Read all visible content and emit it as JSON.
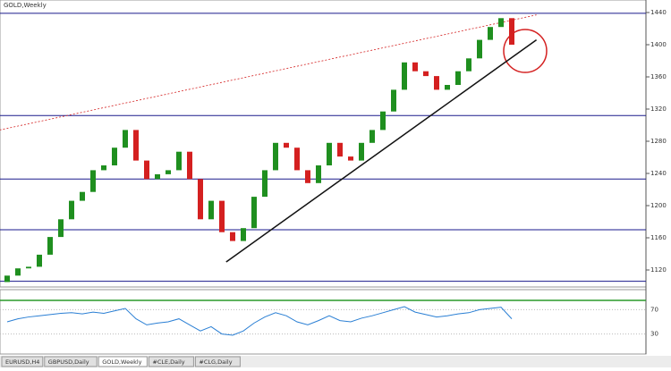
{
  "window": {
    "title": "GOLD,Weekly",
    "tabs": [
      "EURUSD,H4",
      "GBPUSD,Daily",
      "GOLD,Weekly",
      "#CLE,Daily",
      "#CLG,Daily"
    ],
    "active_tab": 2
  },
  "chart_data": {
    "type": "candlestick",
    "open": [
      1105,
      1113,
      1122,
      1124,
      1139,
      1161,
      1183,
      1206,
      1217,
      1244,
      1250,
      1272,
      1294,
      1256,
      1233,
      1239,
      1244,
      1267,
      1233,
      1183,
      1206,
      1167,
      1156,
      1172,
      1211,
      1244,
      1278,
      1272,
      1244,
      1228,
      1250,
      1278,
      1261,
      1256,
      1278,
      1294,
      1317,
      1344,
      1378,
      1367,
      1361,
      1344,
      1350,
      1367,
      1383,
      1406,
      1422,
      1433
    ],
    "close": [
      1113,
      1122,
      1124,
      1139,
      1161,
      1183,
      1206,
      1217,
      1244,
      1250,
      1272,
      1294,
      1256,
      1233,
      1239,
      1244,
      1267,
      1233,
      1183,
      1206,
      1167,
      1156,
      1172,
      1211,
      1244,
      1278,
      1272,
      1244,
      1228,
      1250,
      1278,
      1261,
      1256,
      1278,
      1294,
      1317,
      1344,
      1378,
      1367,
      1361,
      1344,
      1350,
      1367,
      1383,
      1406,
      1422,
      1433,
      1400
    ],
    "up_color": "#1f8f1f",
    "down_color": "#d42020",
    "ylim": [
      1100,
      1450
    ],
    "yticks": [
      1120,
      1160,
      1200,
      1240,
      1280,
      1320,
      1360,
      1400,
      1440
    ],
    "levels": [
      1439,
      1312,
      1233,
      1170,
      1106
    ],
    "level_color": "#1a1a8c",
    "trendline": [
      [
        20.4,
        1130
      ],
      [
        49.3,
        1406
      ]
    ],
    "channel_line": [
      [
        -0.7,
        1294
      ],
      [
        49.3,
        1437
      ]
    ],
    "rsi": {
      "values": [
        50,
        55,
        58,
        60,
        62,
        64,
        65,
        63,
        66,
        64,
        68,
        72,
        55,
        45,
        48,
        50,
        55,
        45,
        35,
        42,
        30,
        28,
        35,
        48,
        58,
        65,
        60,
        50,
        45,
        52,
        60,
        52,
        50,
        56,
        60,
        65,
        70,
        75,
        66,
        62,
        58,
        60,
        63,
        65,
        70,
        72,
        74,
        55
      ],
      "ylim": [
        0,
        100
      ],
      "yticks": [
        30,
        70
      ],
      "color": "#2a7fd4"
    }
  }
}
